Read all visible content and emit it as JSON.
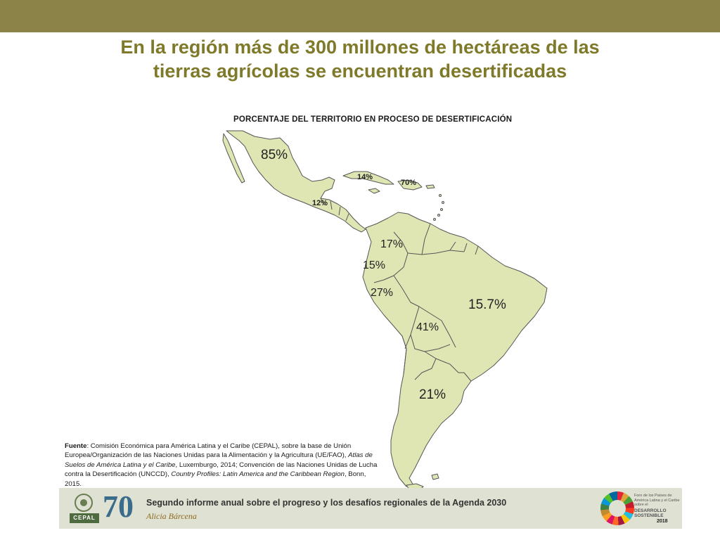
{
  "slide": {
    "title_line1": "En la región más de 300 millones de hectáreas de las",
    "title_line2": "tierras agrícolas se encuentran desertificadas"
  },
  "map": {
    "title": "PORCENTAJE DEL TERRITORIO EN PROCESO DE DESERTIFICACIÓN",
    "labels": {
      "mexico": "85%",
      "cuba": "14%",
      "hispaniola": "70%",
      "central_america": "12%",
      "colombia": "17%",
      "ecuador": "15%",
      "peru": "27%",
      "brazil": "15.7%",
      "bolivia": "41%",
      "argentina": "21%"
    },
    "colors": {
      "land": "#dfe6b4",
      "border": "#555555"
    }
  },
  "source": {
    "label": "Fuente",
    "text1": ": Comisión Económica para América Latina y el Caribe (CEPAL), sobre la base de Unión Europea/Organización de las Naciones Unidas para la Alimentación y la Agricultura (UE/FAO), ",
    "italic1": "Atlas de Suelos de América Latina y el Caribe",
    "text2": ", Luxemburgo, 2014; Convención de las Naciones Unidas de Lucha contra la Desertificación (UNCCD), ",
    "italic2": "Country Profiles: Latin America and the Caribbean Region",
    "text3": ", Bonn, 2015."
  },
  "footer": {
    "cepal": "CEPAL",
    "seventy": "70",
    "report": "Segundo informe anual sobre el progreso y los desafíos  regionales de la Agenda 2030",
    "author": "Alicia Bárcena",
    "forum_text": "Foro de los Países de América Latina y el Caribe sobre el",
    "forum_desarrollo": "DESARROLLO SOSTENIBLE",
    "forum_year": "2018"
  }
}
